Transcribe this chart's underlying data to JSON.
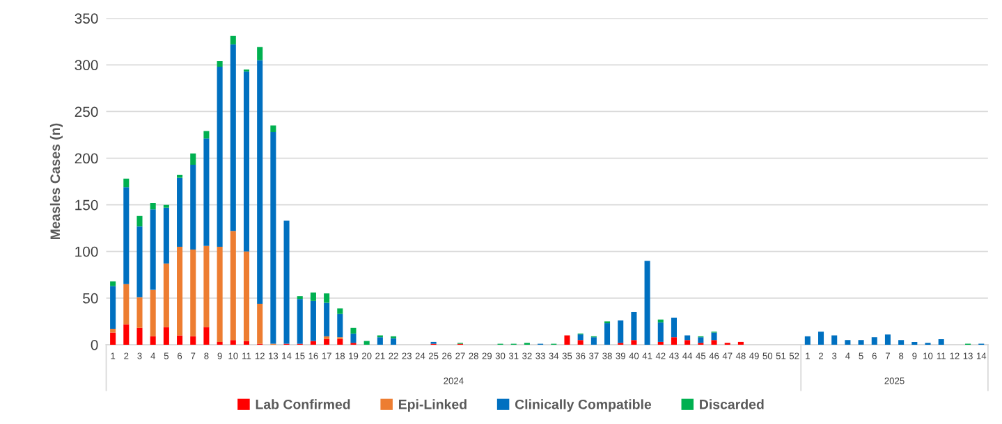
{
  "chart_data": {
    "type": "bar",
    "stacked": true,
    "ylabel": "Measles Cases (n)",
    "categories": [
      "1",
      "2",
      "3",
      "4",
      "5",
      "6",
      "7",
      "8",
      "9",
      "10",
      "11",
      "12",
      "13",
      "14",
      "15",
      "16",
      "17",
      "18",
      "19",
      "20",
      "21",
      "22",
      "23",
      "24",
      "25",
      "26",
      "27",
      "28",
      "29",
      "30",
      "31",
      "32",
      "33",
      "34",
      "35",
      "36",
      "37",
      "38",
      "39",
      "40",
      "41",
      "42",
      "43",
      "44",
      "45",
      "46",
      "47",
      "48",
      "49",
      "50",
      "51",
      "52",
      "1",
      "2",
      "3",
      "4",
      "5",
      "6",
      "7",
      "8",
      "9",
      "10",
      "11",
      "12",
      "13",
      "14"
    ],
    "series": [
      {
        "name": "Lab Confirmed",
        "color": "#ff0000",
        "values": [
          13,
          22,
          18,
          9,
          19,
          10,
          9,
          19,
          3,
          5,
          4,
          1,
          0,
          1,
          1,
          4,
          6,
          6,
          2,
          0,
          0,
          0,
          0,
          0,
          1,
          0,
          1,
          0,
          0,
          0,
          0,
          0,
          0,
          0,
          10,
          5,
          0,
          0,
          2,
          5,
          0,
          3,
          8,
          5,
          2,
          5,
          2,
          3,
          0,
          0,
          0,
          0,
          0,
          0,
          0,
          0,
          0,
          0,
          0,
          0,
          0,
          0,
          0,
          0,
          0,
          0
        ]
      },
      {
        "name": "Epi-Linked",
        "color": "#ed7d31",
        "values": [
          4,
          43,
          33,
          50,
          68,
          95,
          93,
          87,
          102,
          117,
          96,
          43,
          1,
          0,
          0,
          0,
          3,
          2,
          0,
          0,
          0,
          0,
          0,
          0,
          0,
          0,
          0,
          0,
          0,
          0,
          0,
          0,
          0,
          0,
          0,
          0,
          0,
          0,
          0,
          0,
          0,
          0,
          0,
          0,
          0,
          0,
          0,
          0,
          0,
          0,
          0,
          0,
          0,
          0,
          0,
          0,
          0,
          0,
          0,
          0,
          0,
          0,
          0,
          0,
          0,
          0
        ]
      },
      {
        "name": "Clinically Compatible",
        "color": "#0070c0",
        "values": [
          46,
          104,
          76,
          86,
          60,
          74,
          91,
          115,
          193,
          200,
          193,
          261,
          227,
          132,
          48,
          43,
          36,
          25,
          10,
          0,
          8,
          7,
          0,
          0,
          2,
          0,
          0,
          0,
          0,
          0,
          0,
          0,
          1,
          0,
          0,
          6,
          8,
          23,
          24,
          30,
          90,
          21,
          21,
          5,
          6,
          8,
          0,
          0,
          0,
          0,
          0,
          0,
          9,
          14,
          10,
          5,
          5,
          8,
          11,
          5,
          3,
          2,
          6,
          0,
          0,
          1
        ]
      },
      {
        "name": "Discarded",
        "color": "#00b050",
        "values": [
          5,
          9,
          11,
          7,
          3,
          3,
          12,
          8,
          6,
          9,
          2,
          14,
          7,
          0,
          3,
          9,
          10,
          6,
          6,
          4,
          2,
          2,
          0,
          0,
          0,
          0,
          1,
          0,
          0,
          1,
          1,
          2,
          0,
          1,
          0,
          1,
          1,
          2,
          0,
          0,
          0,
          3,
          0,
          0,
          1,
          1,
          0,
          0,
          0,
          0,
          0,
          0,
          0,
          0,
          0,
          0,
          0,
          0,
          0,
          0,
          0,
          0,
          0,
          0,
          1,
          0
        ]
      }
    ],
    "annotations": [
      "2024",
      "2025"
    ],
    "ylim": [
      0,
      350
    ],
    "yticks": [
      0,
      50,
      100,
      150,
      200,
      250,
      300,
      350
    ],
    "grid": "y",
    "legend": "bottom"
  }
}
